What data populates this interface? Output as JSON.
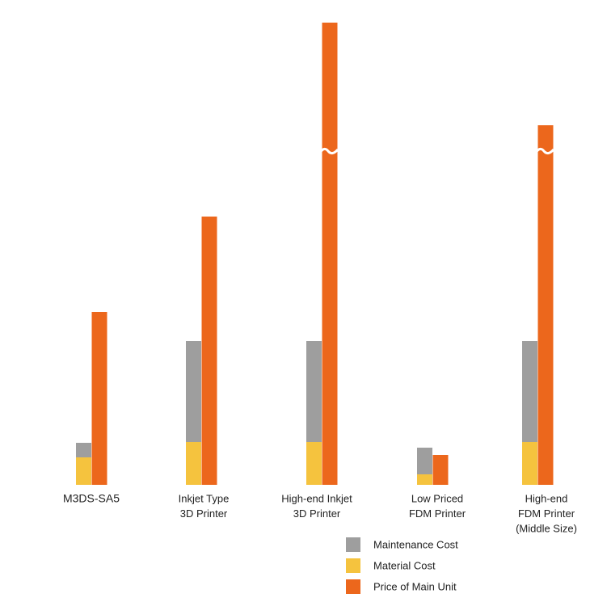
{
  "chart_data": {
    "type": "bar",
    "categories": [
      [
        "M3DS-SA5"
      ],
      [
        "Inkjet Type",
        "3D Printer"
      ],
      [
        "High-end Inkjet",
        "3D Printer"
      ],
      [
        "Low Priced",
        "FDM Printer"
      ],
      [
        "High-end",
        "FDM Printer",
        "(Middle Size)"
      ]
    ],
    "series": [
      {
        "name": "Maintenance Cost",
        "color": "#9e9e9e",
        "values": [
          18,
          125,
          125,
          33,
          125
        ]
      },
      {
        "name": "Material Cost",
        "color": "#f5c33e",
        "values": [
          34,
          53,
          53,
          13,
          53
        ]
      },
      {
        "name": "Price of Main Unit",
        "color": "#ec671c",
        "values": [
          214,
          332,
          572,
          37,
          445
        ]
      }
    ],
    "broken": [
      false,
      false,
      true,
      false,
      true
    ],
    "ylim": [
      0,
      572
    ]
  }
}
